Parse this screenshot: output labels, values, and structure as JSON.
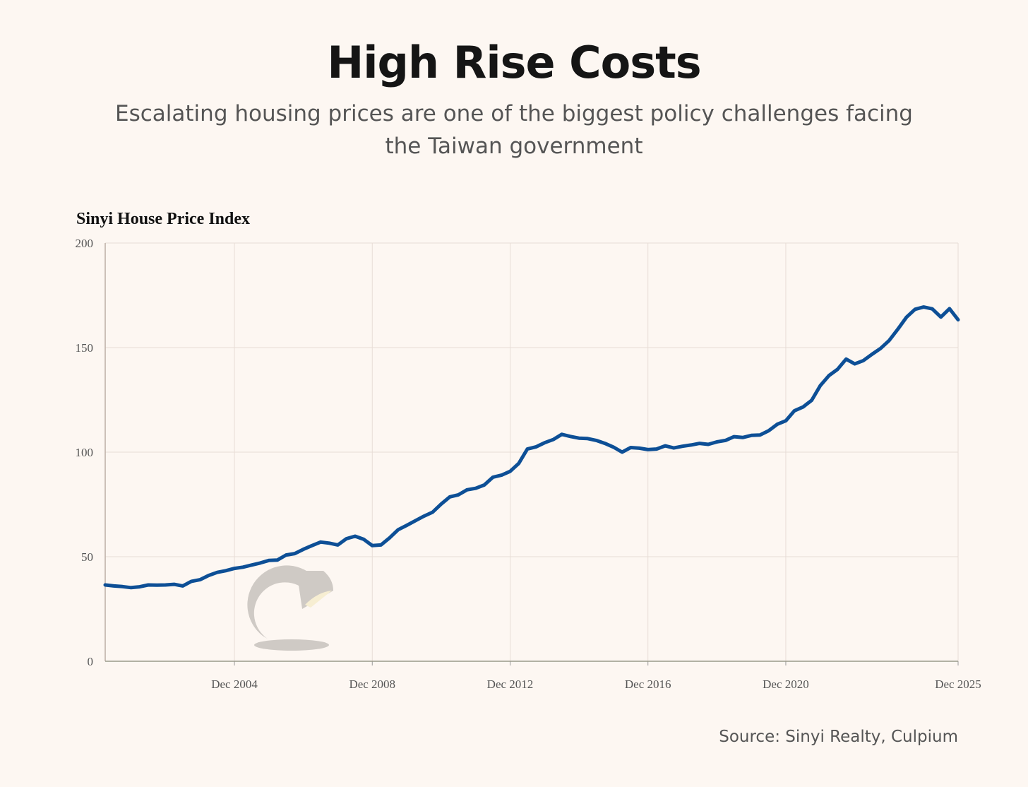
{
  "header": {
    "title": "High Rise Costs",
    "subtitle": "Escalating housing prices are one of the biggest policy challenges facing the Taiwan government"
  },
  "source": "Source: Sinyi Realty, Culpium",
  "colors": {
    "background": "#fdf7f2",
    "line": "#0d4f96",
    "grid": "#e8ddd6"
  },
  "watermark_icon": "desk-lamp-icon",
  "chart_data": {
    "type": "line",
    "title": "Sinyi House Price Index",
    "xlabel": "",
    "ylabel": "",
    "ylim": [
      0,
      200
    ],
    "yticks": [
      "0",
      "50",
      "100",
      "150",
      "200"
    ],
    "xticks": [
      "Dec 2004",
      "Dec 2008",
      "Dec 2012",
      "Dec 2016",
      "Dec 2020",
      "Dec 2025"
    ],
    "x_start": "Q1 2001",
    "x_end": "Q4 2025",
    "frequency": "quarterly",
    "grid": true,
    "series": [
      {
        "name": "Sinyi House Price Index",
        "values": [
          36.5,
          36,
          35.7,
          35.2,
          35.6,
          36.5,
          36.4,
          36.5,
          36.8,
          36,
          38.2,
          39,
          41,
          42.5,
          43.3,
          44.4,
          45,
          46,
          47,
          48.2,
          48.4,
          50.8,
          51.5,
          53.5,
          55.3,
          57,
          56.5,
          55.6,
          58.6,
          59.8,
          58.3,
          55.3,
          55.6,
          59,
          62.9,
          65,
          67.2,
          69.4,
          71.3,
          75.2,
          78.6,
          79.6,
          82,
          82.7,
          84.3,
          88,
          89,
          90.8,
          94.6,
          101.5,
          102.5,
          104.5,
          106,
          108.5,
          107.5,
          106.7,
          106.5,
          105.6,
          104.2,
          102.4,
          100,
          102.2,
          101.9,
          101.2,
          101.5,
          103,
          102,
          102.8,
          103.4,
          104.2,
          103.7,
          104.9,
          105.6,
          107.4,
          107,
          108,
          108.2,
          110.2,
          113.3,
          115,
          119.8,
          121.6,
          124.8,
          131.8,
          136.6,
          139.6,
          144.5,
          142.2,
          143.8,
          146.8,
          149.6,
          153.4,
          158.8,
          164.5,
          168.3,
          169.4,
          168.5,
          164.6,
          168.6,
          163.3
        ]
      }
    ]
  }
}
